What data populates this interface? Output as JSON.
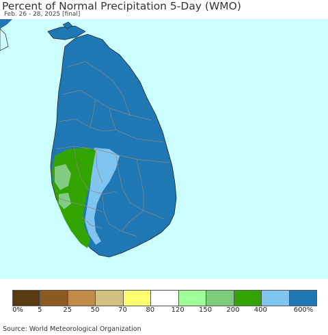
{
  "title": "Percent of Normal Precipitation 5-Day (WMO)",
  "subtitle": "Feb. 26 - 28, 2025 [final]",
  "source": "Source: World Meteorological Organization",
  "colors": {
    "ocean": "#ccffff",
    "land_main": "#1f78b4",
    "light_blue": "#80c4f0",
    "green": "#33a300",
    "light_green": "#80cc80",
    "border": "#808080"
  },
  "legend": {
    "swatches": [
      {
        "color": "#5a3a10"
      },
      {
        "color": "#8c5a20"
      },
      {
        "color": "#c08a48"
      },
      {
        "color": "#d2c080"
      },
      {
        "color": "#ffff70"
      },
      {
        "color": "#ffffff"
      },
      {
        "color": "#a0ff98"
      },
      {
        "color": "#7ccc7a"
      },
      {
        "color": "#33a300"
      },
      {
        "color": "#80c4f0"
      },
      {
        "color": "#1f78b4"
      }
    ],
    "labels": [
      "0%",
      "5",
      "25",
      "50",
      "70",
      "80",
      "120",
      "150",
      "200",
      "400",
      "600%"
    ]
  }
}
